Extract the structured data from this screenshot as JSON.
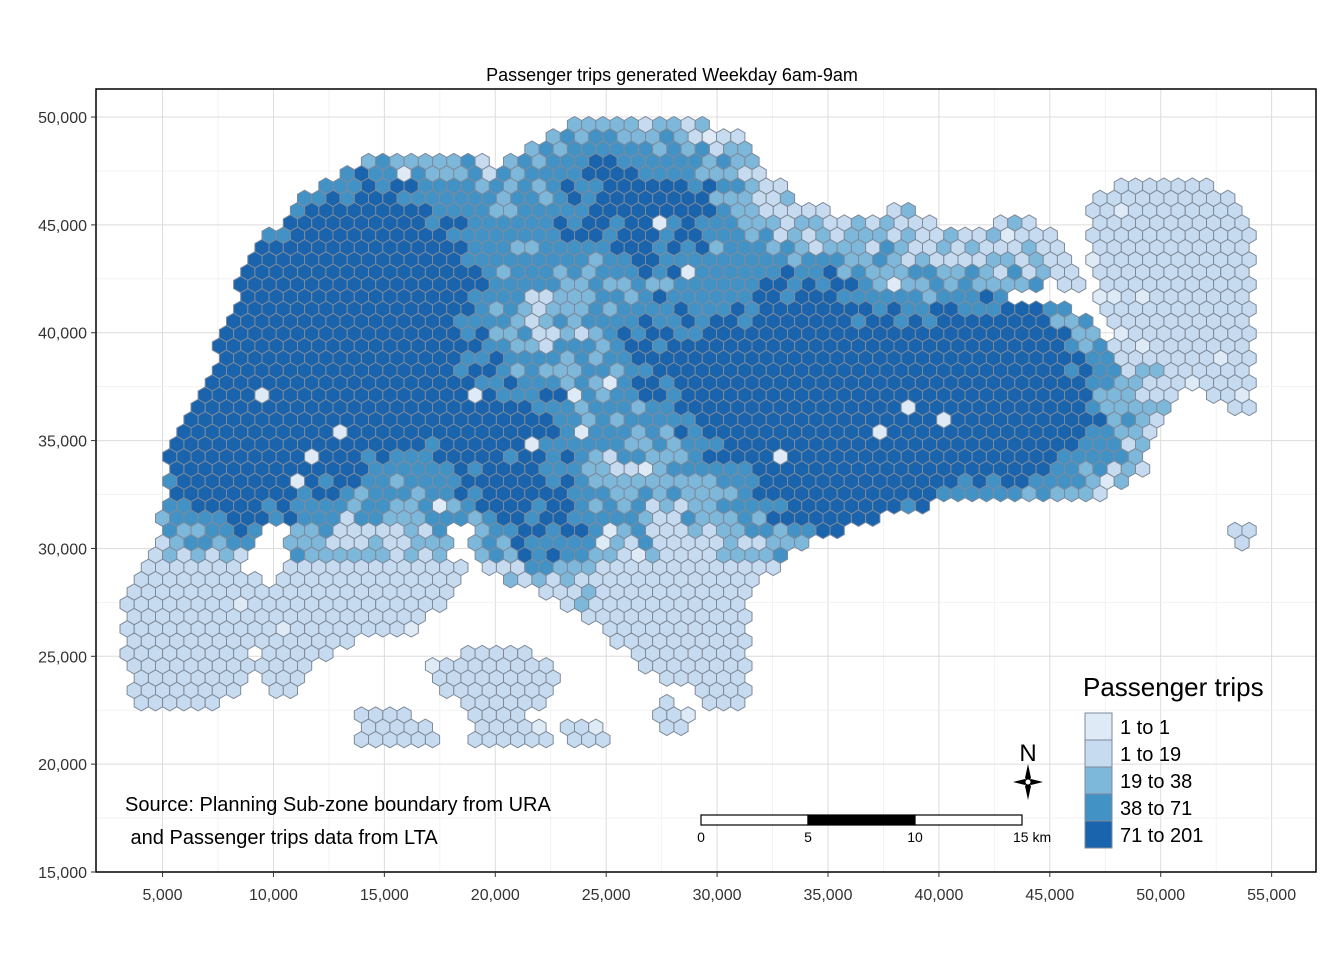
{
  "title": "Passenger trips generated Weekday 6am-9am",
  "x_axis": {
    "range": [
      2000,
      57000
    ],
    "ticks": [
      5000,
      10000,
      15000,
      20000,
      25000,
      30000,
      35000,
      40000,
      45000,
      50000,
      55000
    ],
    "tick_labels": [
      "5,000",
      "10,000",
      "15,000",
      "20,000",
      "25,000",
      "30,000",
      "35,000",
      "40,000",
      "45,000",
      "50,000",
      "55,000"
    ]
  },
  "y_axis": {
    "range": [
      15000,
      51300
    ],
    "ticks": [
      15000,
      20000,
      25000,
      30000,
      35000,
      40000,
      45000,
      50000
    ],
    "tick_labels": [
      "15,000",
      "20,000",
      "25,000",
      "30,000",
      "35,000",
      "40,000",
      "45,000",
      "50,000"
    ]
  },
  "grid": true,
  "legend": {
    "title": "Passenger trips",
    "placement": "bottom-right",
    "classes": [
      {
        "label": "1 to 1",
        "color": "#deebf7"
      },
      {
        "label": "1 to 19",
        "color": "#c6dbef"
      },
      {
        "label": "19 to 38",
        "color": "#7db7da"
      },
      {
        "label": "38 to 71",
        "color": "#4292c6"
      },
      {
        "label": "71 to 201",
        "color": "#1a64ad"
      }
    ]
  },
  "hex_outline_color": "#7f8a99",
  "source_lines": [
    "Source: Planning Sub-zone boundary from URA",
    " and Passenger trips data from LTA"
  ],
  "scale_bar": {
    "ticks": [
      0,
      5,
      10,
      15
    ],
    "tick_labels": [
      "0",
      "5",
      "10",
      "15 km"
    ],
    "unit": "km"
  },
  "north_arrow": {
    "label": "N"
  }
}
